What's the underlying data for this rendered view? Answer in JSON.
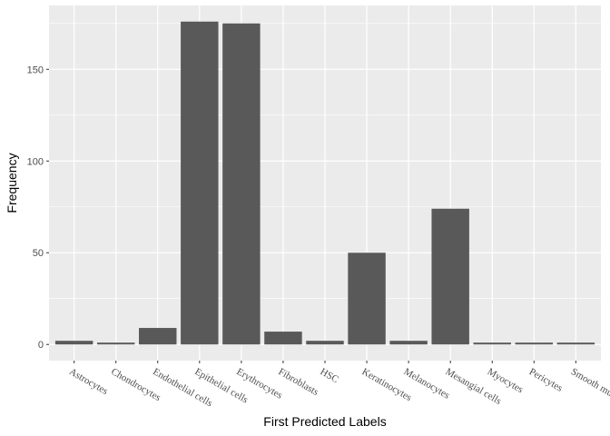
{
  "chart_data": {
    "type": "bar",
    "title": "",
    "xlabel": "First Predicted Labels",
    "ylabel": "Frequency",
    "categories": [
      "Astrocytes",
      "Chondrocytes",
      "Endothelial cells",
      "Epithelial cells",
      "Erythrocytes",
      "Fibroblasts",
      "HSC",
      "Keratinocytes",
      "Melanocytes",
      "Mesangial cells",
      "Myocytes",
      "Pericytes",
      "Smooth muscle"
    ],
    "values": [
      2,
      1,
      9,
      176,
      175,
      7,
      2,
      50,
      2,
      74,
      1,
      1,
      1
    ],
    "ylim": [
      -8.8,
      184.8
    ],
    "yticks": [
      0,
      50,
      100,
      150
    ],
    "grid": true,
    "legend": "none",
    "colors": {
      "panel": "#ebebeb",
      "grid": "#ffffff",
      "bar": "#595959",
      "text": "#4d4d4d",
      "tick": "#333333"
    }
  }
}
